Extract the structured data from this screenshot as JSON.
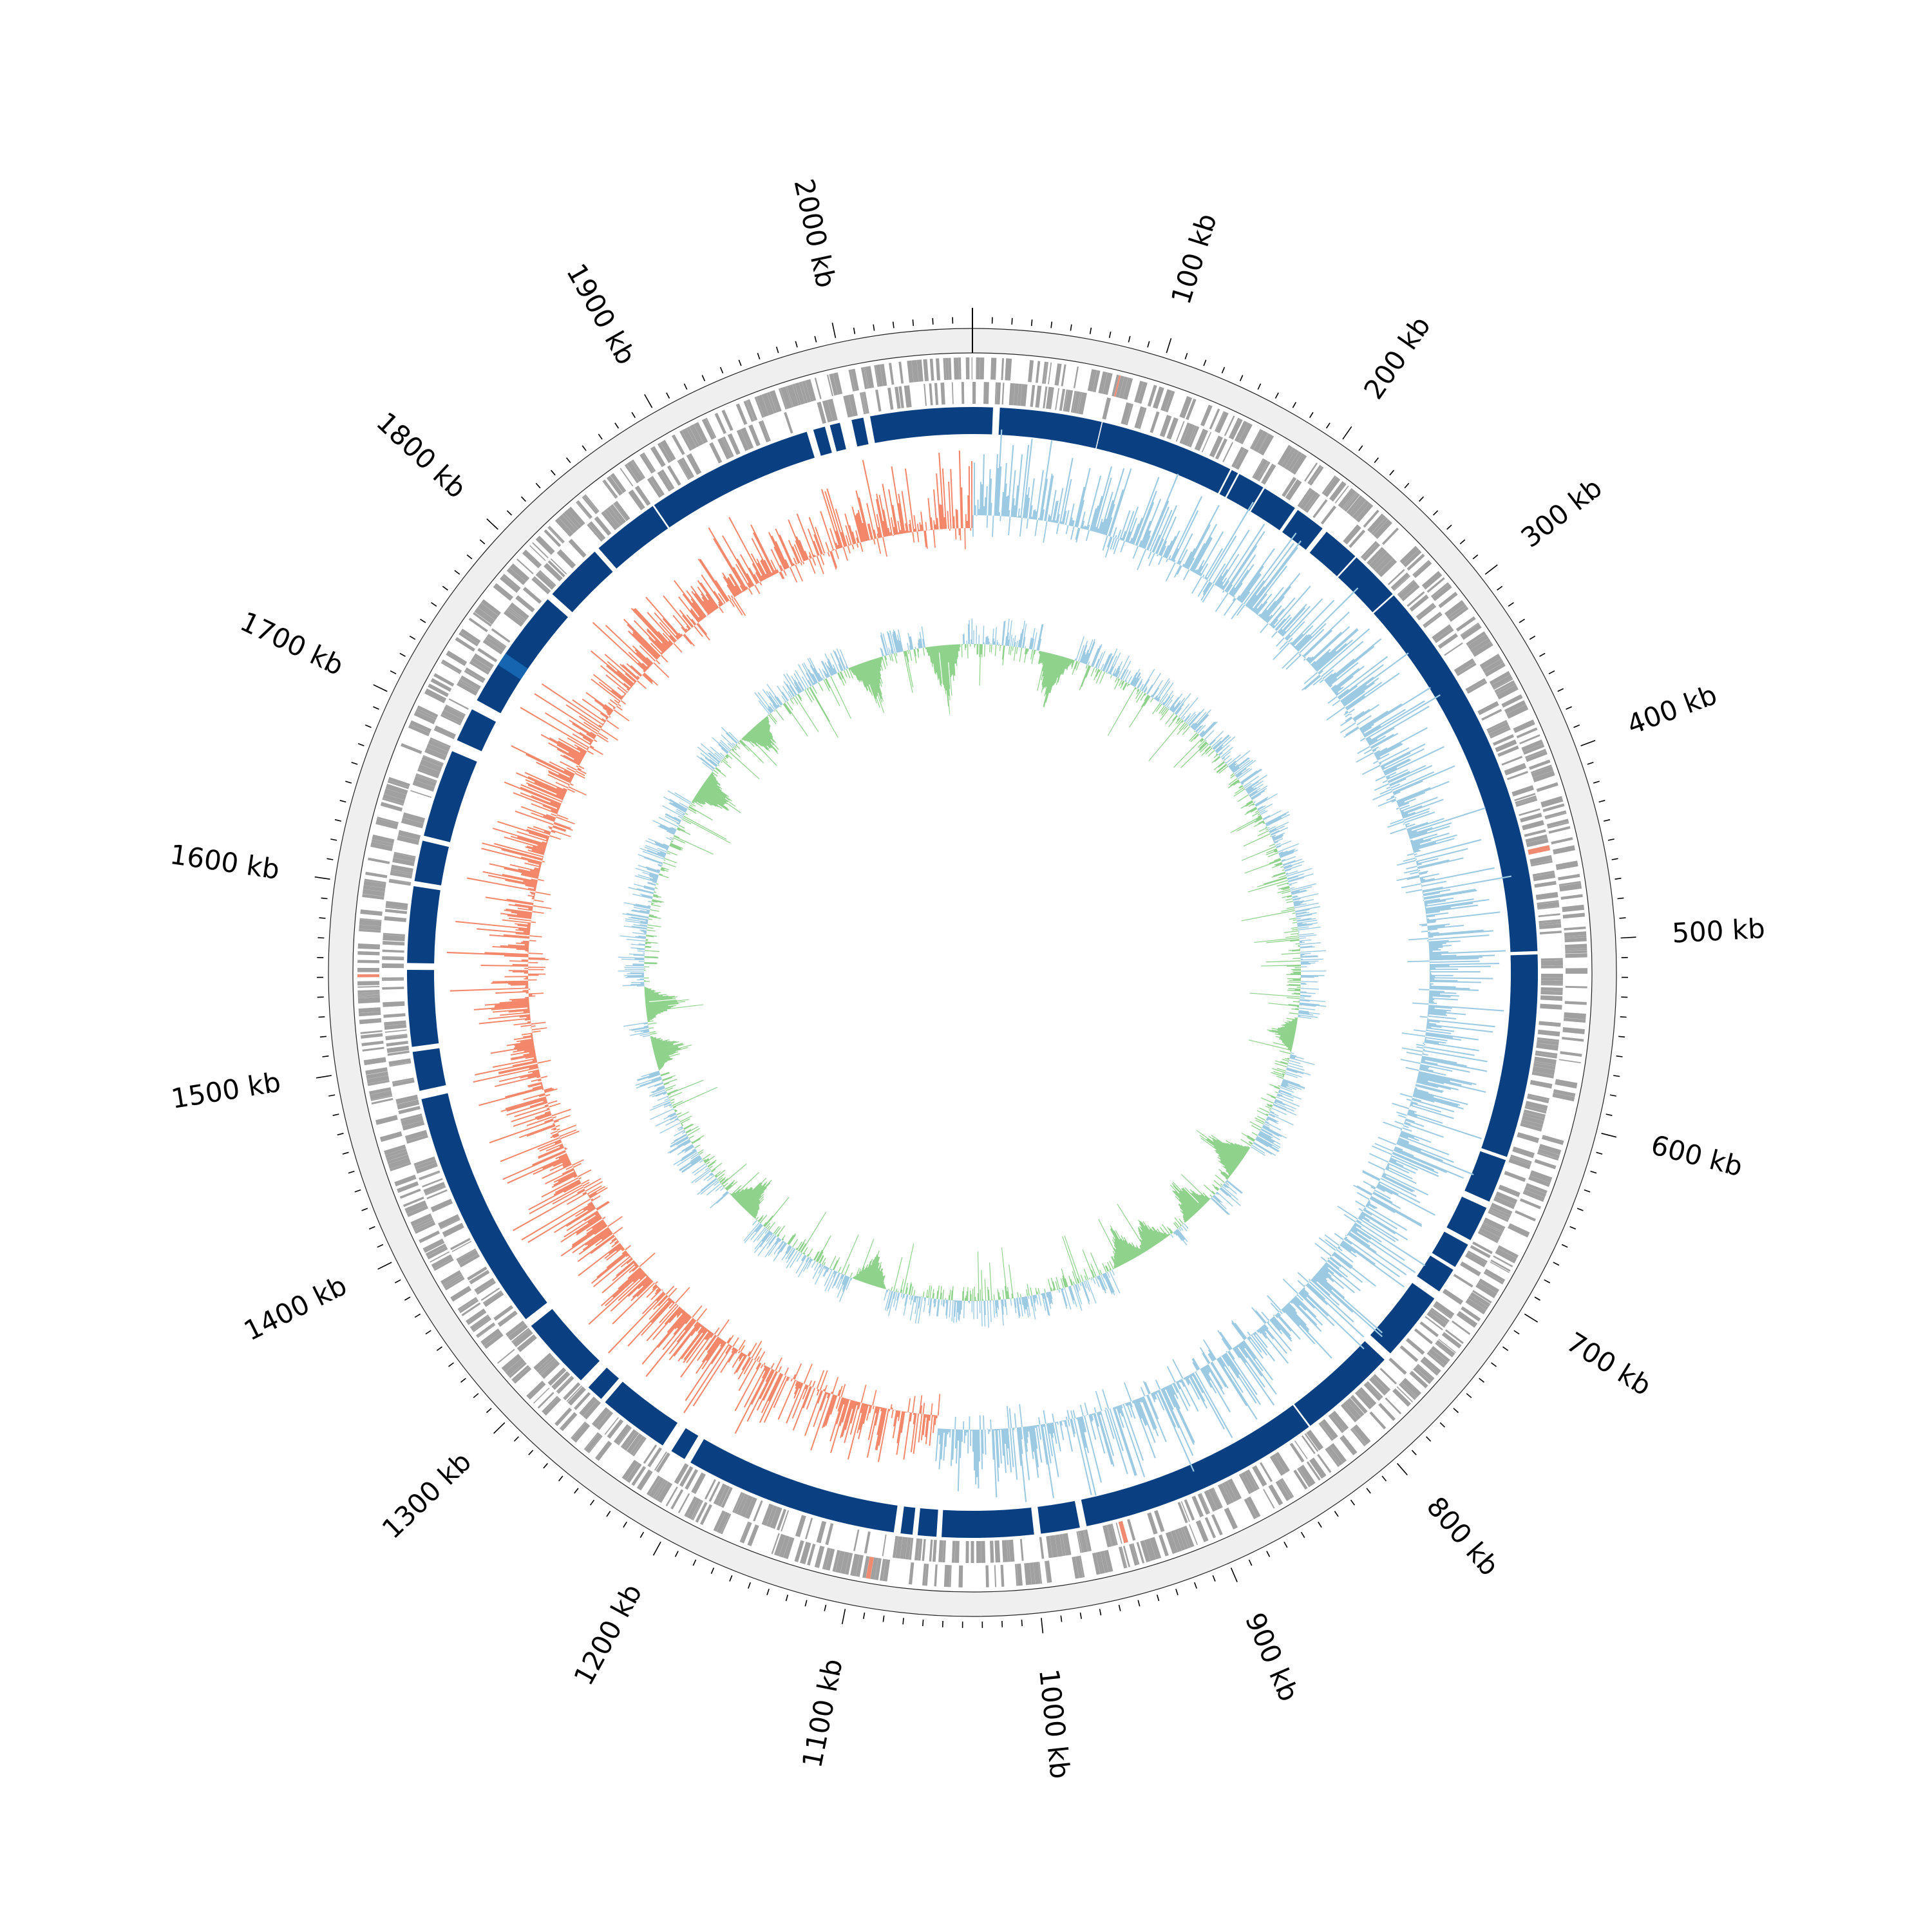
{
  "genome": {
    "length_kb": 2070,
    "tick_labels": [
      "100 kb",
      "200 kb",
      "300 kb",
      "400 kb",
      "500 kb",
      "600 kb",
      "700 kb",
      "800 kb",
      "900 kb",
      "1000 kb",
      "1100 kb",
      "1200 kb",
      "1300 kb",
      "1400 kb",
      "1500 kb",
      "1600 kb",
      "1700 kb",
      "1800 kb",
      "1900 kb",
      "2000 kb"
    ],
    "tick_positions_kb": [
      100,
      200,
      300,
      400,
      500,
      600,
      700,
      800,
      900,
      1000,
      1100,
      1200,
      1300,
      1400,
      1500,
      1600,
      1700,
      1800,
      1900,
      2000
    ],
    "minor_tick_step_kb": 10
  },
  "colors": {
    "outer_band": "#efefef",
    "cds": "#a0a0a0",
    "rna": "#f08a70",
    "region": "#0a3f82",
    "region_alt": "#1565b0",
    "gc_positive": "#9ccae2",
    "gc_negative": "#f4866a",
    "skew_positive": "#9ccae2",
    "skew_negative": "#8fd28c",
    "axis": "#000000"
  },
  "tracks": {
    "region_gaps_kb": [
      [
        12,
        16
      ],
      [
        76,
        76.6
      ],
      [
        156,
        157
      ],
      [
        161,
        162
      ],
      [
        178,
        179
      ],
      [
        200,
        202
      ],
      [
        220,
        223
      ],
      [
        245,
        246
      ],
      [
        276,
        277
      ],
      [
        505,
        507
      ],
      [
        627,
        629
      ],
      [
        655,
        659
      ],
      [
        680,
        683
      ],
      [
        698,
        700
      ],
      [
        715,
        720
      ],
      [
        761,
        766
      ],
      [
        824,
        825
      ],
      [
        968,
        972
      ],
      [
        995,
        999
      ],
      [
        1053,
        1056
      ],
      [
        1067,
        1070
      ],
      [
        1077,
        1081
      ],
      [
        1207,
        1211
      ],
      [
        1220,
        1226
      ],
      [
        1268,
        1271
      ],
      [
        1281,
        1287
      ],
      [
        1330,
        1335
      ],
      [
        1478,
        1483
      ],
      [
        1506,
        1509
      ],
      [
        1554,
        1558
      ],
      [
        1603,
        1606
      ],
      [
        1630,
        1633
      ],
      [
        1685,
        1692
      ],
      [
        1712,
        1718
      ],
      [
        1790,
        1794
      ],
      [
        1829,
        1832
      ],
      [
        1872,
        1873
      ],
      [
        1972,
        1976
      ],
      [
        1983,
        1986
      ],
      [
        1992,
        1999
      ],
      [
        2006,
        2010
      ]
    ],
    "region_alt_span_kb": [
      1742,
      1750
    ],
    "gc_content": {
      "gc_positive_spans_kb": [
        [
          0,
          300
        ],
        [
          300,
          1060
        ]
      ],
      "gc_negative_spans_kb": [
        [
          1060,
          2070
        ]
      ]
    },
    "gc_skew": {
      "skew_negative_peaks_kb": [
        [
          2040,
          -0.9
        ],
        [
          1960,
          -0.7
        ],
        [
          85,
          -0.7
        ],
        [
          1830,
          -0.5
        ],
        [
          1750,
          -0.6
        ],
        [
          1520,
          -0.55
        ],
        [
          1470,
          -0.5
        ],
        [
          1290,
          -0.55
        ],
        [
          1140,
          -0.45
        ],
        [
          870,
          -0.5
        ],
        [
          840,
          -0.4
        ],
        [
          785,
          -0.55
        ],
        [
          720,
          -0.7
        ],
        [
          580,
          -0.35
        ]
      ]
    }
  }
}
